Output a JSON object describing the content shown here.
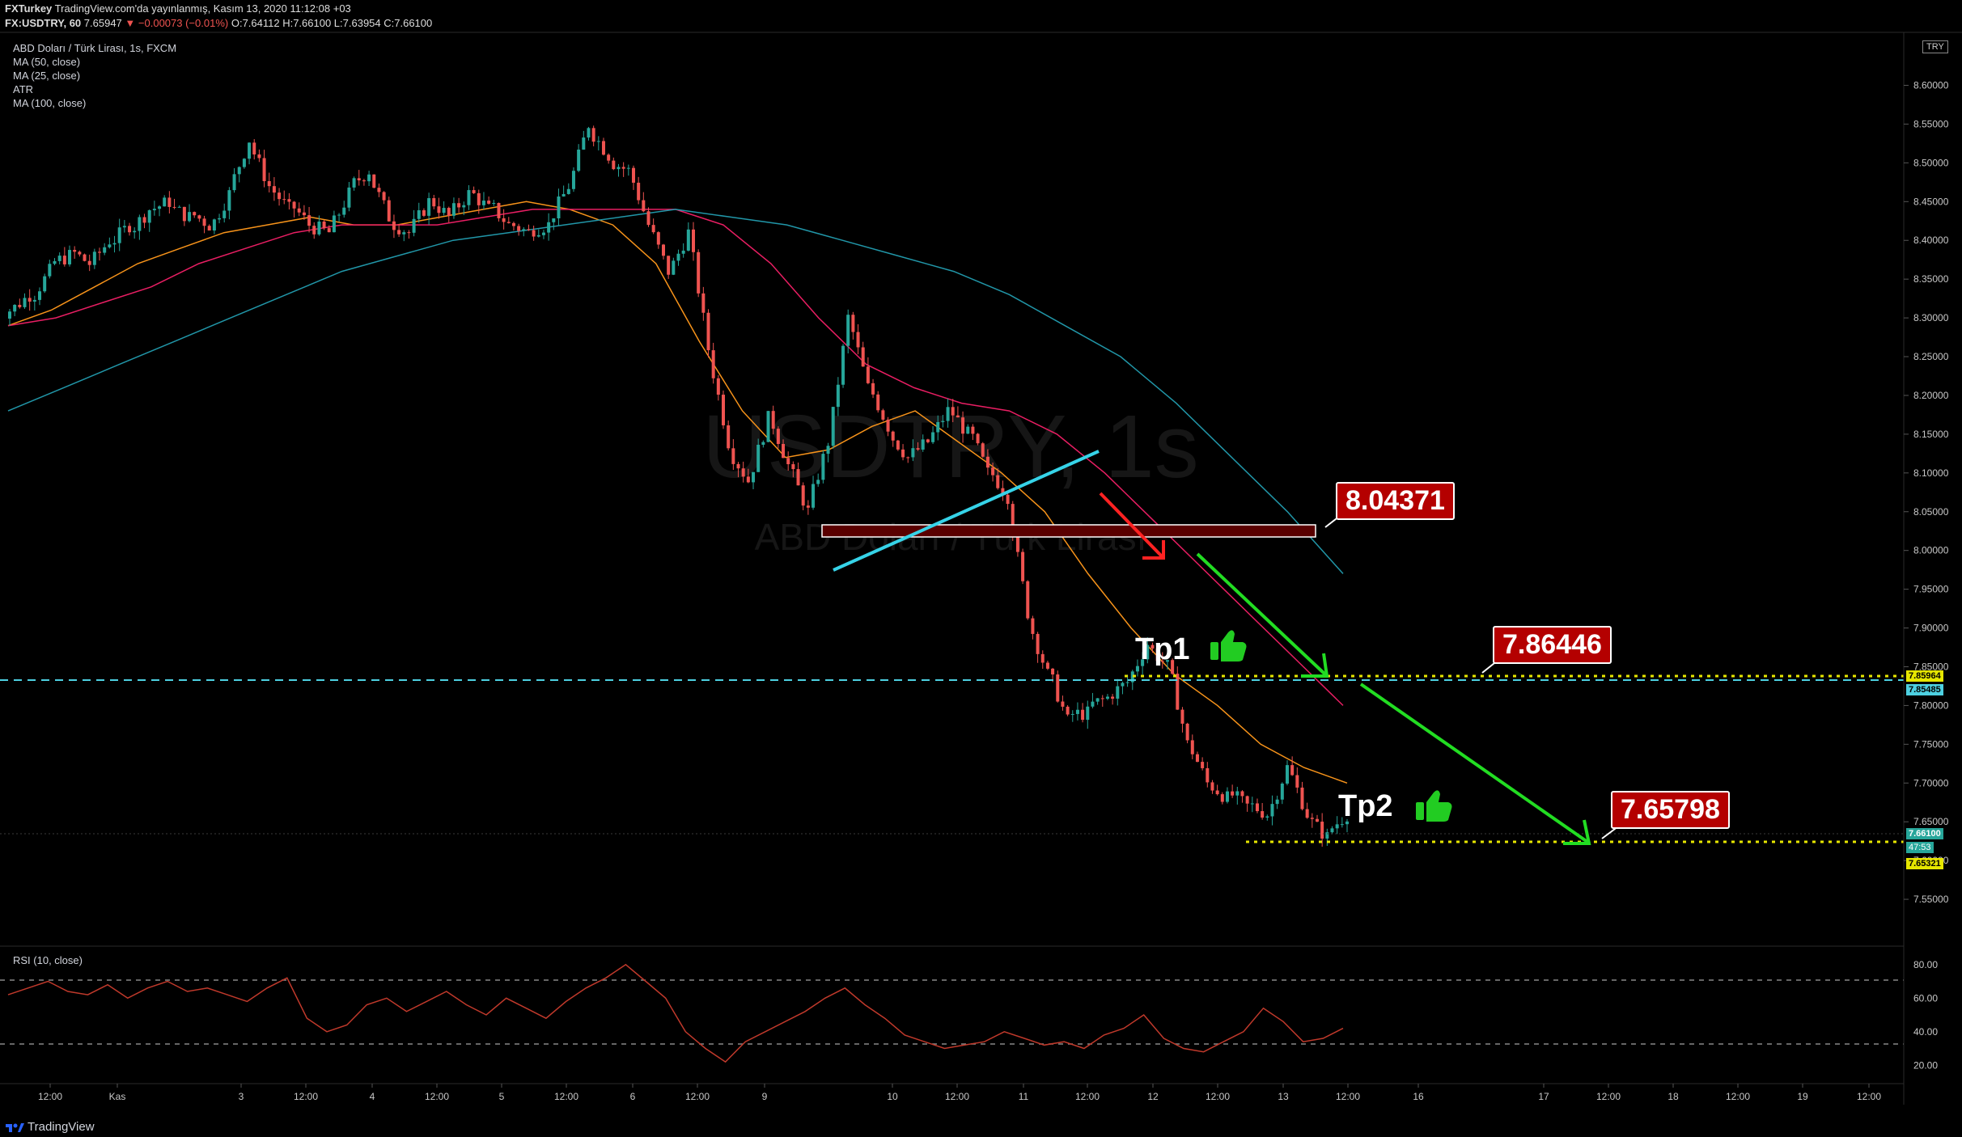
{
  "header": {
    "publisher": "FXTurkey",
    "published_text": "TradingView.com'da yayınlanmış, Kasım 13, 2020 11:12:08 +03",
    "symbol": "FX:USDTRY, 60",
    "last": "7.65947",
    "change": "−0.00073 (−0.01%)",
    "ohlc": "O:7.64112 H:7.66100 L:7.63954 C:7.66100"
  },
  "legend": {
    "title": "ABD Doları / Türk Lirası, 1s, FXCM",
    "indicators": [
      "MA (50, close)",
      "MA (25, close)",
      "ATR",
      "MA (100, close)"
    ]
  },
  "watermark": {
    "big": "USDTRY, 1s",
    "small": "ABD Doları / Türk Lirası"
  },
  "currency_badge": "TRY",
  "annotations": {
    "level1": "8.04371",
    "level2": "7.86446",
    "level3": "7.65798",
    "tp1": "Tp1",
    "tp2": "Tp2"
  },
  "price_tags": {
    "yellow_top": "7.85964",
    "cyan": "7.85485",
    "green": "7.66100",
    "countdown": "47:53",
    "yellow_bottom": "7.65321"
  },
  "rsi_label": "RSI (10, close)",
  "brand": "TradingView",
  "colors": {
    "up": "#26a69a",
    "down": "#ef5350",
    "ma25": "#f7931a",
    "ma50": "#e91e63",
    "ma100": "#2196a8",
    "trendline": "#36d3e8",
    "arrow_green": "#22dd22",
    "arrow_red": "#ff2222",
    "level_dots": "#e6e600"
  },
  "chart_data": [
    {
      "type": "candlestick",
      "title": "ABD Doları / Türk Lirası, 1s, FXCM",
      "ylim": [
        7.5,
        8.66
      ],
      "y_ticks": [
        "8.60000",
        "8.55000",
        "8.50000",
        "8.45000",
        "8.40000",
        "8.35000",
        "8.30000",
        "8.25000",
        "8.20000",
        "8.15000",
        "8.10000",
        "8.05000",
        "8.00000",
        "7.95000",
        "7.90000",
        "7.85000",
        "7.80000",
        "7.75000",
        "7.70000",
        "7.65000",
        "7.60000",
        "7.55000"
      ],
      "x_ticks": [
        "12:00",
        "Kas",
        "3",
        "12:00",
        "4",
        "12:00",
        "5",
        "12:00",
        "6",
        "12:00",
        "9",
        "10",
        "12:00",
        "11",
        "12:00",
        "12",
        "12:00",
        "13",
        "12:00",
        "16",
        "17",
        "12:00",
        "18",
        "12:00",
        "19",
        "12:00"
      ],
      "series": [
        {
          "name": "MA (25, close)",
          "values": [
            8.29,
            8.31,
            8.34,
            8.37,
            8.39,
            8.41,
            8.42,
            8.43,
            8.42,
            8.42,
            8.43,
            8.44,
            8.45,
            8.44,
            8.42,
            8.37,
            8.27,
            8.18,
            8.12,
            8.13,
            8.16,
            8.18,
            8.14,
            8.1,
            8.05,
            7.97,
            7.9,
            7.84,
            7.8,
            7.75,
            7.72,
            7.7
          ]
        },
        {
          "name": "MA (50, close)",
          "values": [
            8.29,
            8.3,
            8.32,
            8.34,
            8.37,
            8.39,
            8.41,
            8.42,
            8.42,
            8.42,
            8.43,
            8.44,
            8.44,
            8.44,
            8.44,
            8.42,
            8.37,
            8.3,
            8.24,
            8.21,
            8.19,
            8.18,
            8.15,
            8.1,
            8.04,
            7.98,
            7.92,
            7.86,
            7.8
          ]
        },
        {
          "name": "MA (100, close)",
          "values": [
            8.18,
            8.21,
            8.24,
            8.27,
            8.3,
            8.33,
            8.36,
            8.38,
            8.4,
            8.41,
            8.42,
            8.43,
            8.44,
            8.43,
            8.42,
            8.4,
            8.38,
            8.36,
            8.33,
            8.29,
            8.25,
            8.19,
            8.12,
            8.05,
            7.97
          ]
        }
      ],
      "candle_closes": [
        8.31,
        8.33,
        8.36,
        8.38,
        8.37,
        8.4,
        8.42,
        8.44,
        8.45,
        8.43,
        8.42,
        8.46,
        8.53,
        8.47,
        8.44,
        8.42,
        8.41,
        8.46,
        8.49,
        8.43,
        8.41,
        8.45,
        8.43,
        8.46,
        8.44,
        8.42,
        8.41,
        8.42,
        8.47,
        8.55,
        8.51,
        8.49,
        8.42,
        8.36,
        8.41,
        8.26,
        8.14,
        8.09,
        8.17,
        8.11,
        8.05,
        8.14,
        8.3,
        8.21,
        8.16,
        8.12,
        8.14,
        8.18,
        8.15,
        8.1,
        8.07,
        7.92,
        7.84,
        7.78,
        7.79,
        7.81,
        7.83,
        7.88,
        7.85,
        7.75,
        7.7,
        7.68,
        7.67,
        7.66,
        7.72,
        7.66,
        7.63,
        7.66
      ]
    },
    {
      "type": "line",
      "title": "RSI (10, close)",
      "ylim": [
        10,
        90
      ],
      "y_ticks": [
        "80.00",
        "60.00",
        "40.00",
        "20.00"
      ],
      "levels": [
        70,
        30
      ],
      "series": [
        {
          "name": "RSI (10, close)",
          "values": [
            62,
            66,
            70,
            64,
            62,
            68,
            60,
            66,
            70,
            64,
            66,
            62,
            58,
            66,
            72,
            48,
            40,
            44,
            56,
            60,
            52,
            58,
            64,
            56,
            50,
            60,
            54,
            48,
            58,
            66,
            72,
            80,
            70,
            60,
            40,
            30,
            22,
            34,
            40,
            46,
            52,
            60,
            66,
            56,
            48,
            38,
            34,
            30,
            32,
            34,
            40,
            36,
            32,
            34,
            30,
            38,
            42,
            50,
            36,
            30,
            28,
            34,
            40,
            54,
            46,
            34,
            36,
            42
          ]
        }
      ]
    }
  ]
}
